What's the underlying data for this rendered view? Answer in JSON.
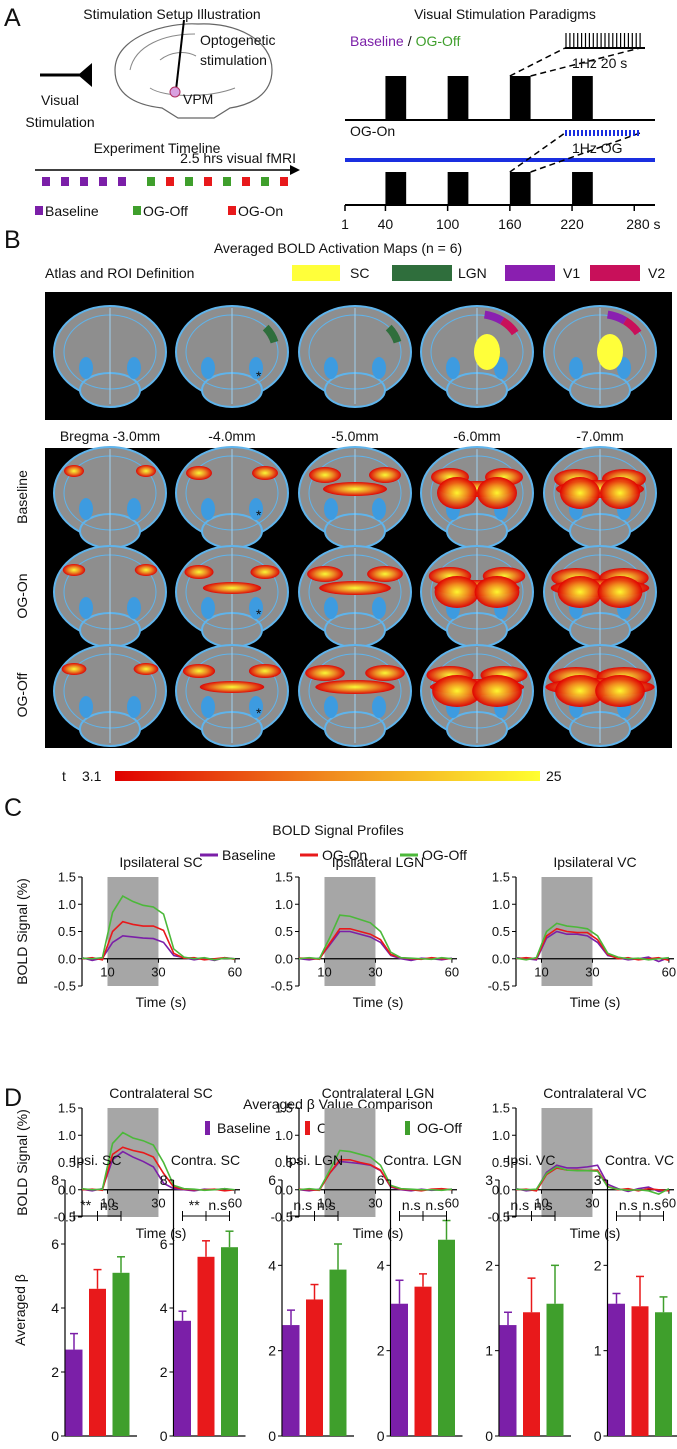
{
  "panel_a": {
    "label": "A",
    "setup": {
      "title": "Stimulation Setup Illustration",
      "optogenetic": [
        "Optogenetic",
        "stimulation"
      ],
      "target": "VPM",
      "visual": [
        "Visual",
        "Stimulation"
      ]
    },
    "timeline": {
      "title": "Experiment Timeline",
      "duration": "2.5 hrs visual fMRI",
      "legend": [
        {
          "name": "Baseline",
          "color": "#7b1fa8"
        },
        {
          "name": "OG-Off",
          "color": "#3f9f2c"
        },
        {
          "name": "OG-On",
          "color": "#e8191b"
        }
      ]
    },
    "paradigms": {
      "title": "Visual Stimulation Paradigms",
      "baseline": "Baseline",
      "separator": "/",
      "og_off": "OG-Off",
      "visual_inset": "1Hz 20 s",
      "og_on": "OG-On",
      "og_inset": "1Hz OG",
      "block_starts": [
        40,
        100,
        160,
        220
      ],
      "block_length": 20,
      "xlim": [
        1,
        300
      ],
      "xticks": [
        1,
        40,
        100,
        160,
        220,
        {
          "value": 280,
          "label": "280 s"
        }
      ]
    }
  },
  "panel_b": {
    "label": "B",
    "title": "Averaged BOLD Activation Maps (n = 6)",
    "atlas_title": "Atlas and ROI Definition",
    "rois": [
      {
        "name": "SC",
        "color": "#ffff3a"
      },
      {
        "name": "LGN",
        "color": "#2f6e3c"
      },
      {
        "name": "V1",
        "color": "#8a1fb0"
      },
      {
        "name": "V2",
        "color": "#c8105a"
      }
    ],
    "bregma": [
      "Bregma -3.0mm",
      "-4.0mm",
      "-5.0mm",
      "-6.0mm",
      "-7.0mm"
    ],
    "rows": [
      {
        "name": "Baseline",
        "color": "#7b1fa8"
      },
      {
        "name": "OG-On",
        "color": "#e8191b"
      },
      {
        "name": "OG-Off",
        "color": "#3f9f2c"
      }
    ],
    "marker": "*",
    "colorbar": {
      "label": "t",
      "min": 3.1,
      "max": 25,
      "colors": [
        "#e00000",
        "#f0891e",
        "#ffff30"
      ]
    }
  },
  "panel_c": {
    "label": "C",
    "title": "BOLD Signal Profiles",
    "legend": [
      {
        "name": "Baseline",
        "color": "#7b1fa8"
      },
      {
        "name": "OG-On",
        "color": "#e8191b"
      },
      {
        "name": "OG-Off",
        "color": "#4cb83a"
      }
    ]
  },
  "panel_d": {
    "label": "D",
    "title": "Averaged β Value Comparison",
    "legend": [
      {
        "name": "Baseline",
        "color": "#7b1fa8"
      },
      {
        "name": "OG-On",
        "color": "#e8191b"
      },
      {
        "name": "OG-Off",
        "color": "#3f9f2c"
      }
    ]
  },
  "chart_data": [
    {
      "type": "line",
      "title": "Ipsilateral SC",
      "ylabel": "BOLD Signal (%)",
      "xlabel": "Time (s)",
      "x": [
        0,
        4,
        8,
        12,
        16,
        20,
        24,
        28,
        32,
        36,
        40,
        44,
        48,
        52,
        56,
        60
      ],
      "series": [
        {
          "values": [
            0.02,
            -0.03,
            0.01,
            0.3,
            0.42,
            0.4,
            0.38,
            0.37,
            0.3,
            0.06,
            0.02,
            -0.02,
            0.01,
            -0.03,
            0.02,
            0
          ]
        },
        {
          "values": [
            0,
            0.02,
            -0.02,
            0.5,
            0.68,
            0.63,
            0.6,
            0.6,
            0.52,
            0.1,
            0.01,
            0.02,
            -0.02,
            0,
            0.02,
            -0.01
          ]
        },
        {
          "values": [
            0.01,
            0,
            0.02,
            0.85,
            1.15,
            1.05,
            0.98,
            0.95,
            0.82,
            0.18,
            0.03,
            0,
            0.02,
            -0.02,
            0.01,
            0
          ]
        }
      ],
      "xlim": [
        0,
        62
      ],
      "ylim": [
        -0.5,
        1.5
      ],
      "xticks": [
        10,
        30,
        60
      ],
      "yticks": [
        1.5,
        {
          "value": 1,
          "label": "1.0"
        },
        0.5,
        {
          "value": 0,
          "label": "0.0"
        },
        -0.5
      ],
      "shade": [
        10,
        30
      ]
    },
    {
      "type": "line",
      "title": "Ipsilateral LGN",
      "xlabel": "Time (s)",
      "x": [
        0,
        4,
        8,
        12,
        16,
        20,
        24,
        28,
        32,
        36,
        40,
        44,
        48,
        52,
        56,
        60
      ],
      "series": [
        {
          "values": [
            0,
            -0.02,
            0.01,
            0.25,
            0.5,
            0.5,
            0.45,
            0.4,
            0.3,
            0.06,
            0,
            -0.03,
            0.01,
            0,
            -0.02,
            0.01
          ]
        },
        {
          "values": [
            0.01,
            0.01,
            -0.01,
            0.28,
            0.55,
            0.55,
            0.5,
            0.45,
            0.35,
            0.08,
            0.02,
            0,
            -0.01,
            0.02,
            0,
            0
          ]
        },
        {
          "values": [
            0,
            0.02,
            0,
            0.38,
            0.8,
            0.78,
            0.72,
            0.66,
            0.5,
            0.12,
            0.02,
            0.01,
            0,
            -0.01,
            0.02,
            0
          ]
        }
      ],
      "xlim": [
        0,
        62
      ],
      "ylim": [
        -0.5,
        1.5
      ],
      "xticks": [
        10,
        30,
        60
      ],
      "yticks": [
        1.5,
        {
          "value": 1,
          "label": "1.0"
        },
        0.5,
        {
          "value": 0,
          "label": "0.0"
        },
        -0.5
      ],
      "shade": [
        10,
        30
      ]
    },
    {
      "type": "line",
      "title": "Ipsilateral VC",
      "xlabel": "Time (s)",
      "x": [
        0,
        4,
        8,
        12,
        16,
        20,
        24,
        28,
        32,
        36,
        40,
        44,
        48,
        52,
        56,
        60
      ],
      "series": [
        {
          "values": [
            0.02,
            0,
            -0.02,
            0.38,
            0.5,
            0.45,
            0.45,
            0.42,
            0.3,
            0.06,
            0.02,
            -0.02,
            0,
            0.03,
            -0.05,
            0.02
          ]
        },
        {
          "values": [
            0,
            0.02,
            0,
            0.42,
            0.55,
            0.5,
            0.48,
            0.48,
            0.35,
            0.08,
            0,
            0.02,
            -0.02,
            0,
            0.02,
            -0.03
          ]
        },
        {
          "values": [
            0.01,
            -0.02,
            0.02,
            0.5,
            0.65,
            0.6,
            0.58,
            0.55,
            0.42,
            0.1,
            0.03,
            0,
            0.01,
            -0.02,
            0,
            0.02
          ]
        }
      ],
      "xlim": [
        0,
        62
      ],
      "ylim": [
        -0.5,
        1.5
      ],
      "xticks": [
        10,
        30,
        60
      ],
      "yticks": [
        1.5,
        {
          "value": 1,
          "label": "1.0"
        },
        0.5,
        {
          "value": 0,
          "label": "0.0"
        },
        -0.5
      ],
      "shade": [
        10,
        30
      ]
    },
    {
      "type": "line",
      "title": "Contralateral SC",
      "ylabel": "BOLD Signal (%)",
      "xlabel": "Time (s)",
      "x": [
        0,
        4,
        8,
        12,
        16,
        20,
        24,
        28,
        32,
        36,
        40,
        44,
        48,
        52,
        56,
        60
      ],
      "series": [
        {
          "values": [
            0.01,
            -0.02,
            0.02,
            0.55,
            0.7,
            0.6,
            0.52,
            0.42,
            0.12,
            0.02,
            0,
            -0.02,
            0.01,
            0,
            0.02,
            -0.01
          ]
        },
        {
          "values": [
            0,
            0.01,
            -0.01,
            0.65,
            0.78,
            0.72,
            0.68,
            0.6,
            0.3,
            0.05,
            0.01,
            0,
            0,
            0.01,
            -0.02,
            0
          ]
        },
        {
          "values": [
            0.02,
            0,
            0.01,
            0.85,
            1.05,
            0.95,
            0.9,
            0.82,
            0.5,
            0.08,
            0.02,
            0.01,
            -0.01,
            0,
            0.02,
            0
          ]
        }
      ],
      "xlim": [
        0,
        62
      ],
      "ylim": [
        -0.5,
        1.5
      ],
      "xticks": [
        10,
        30,
        60
      ],
      "yticks": [
        1.5,
        {
          "value": 1,
          "label": "1.0"
        },
        0.5,
        {
          "value": 0,
          "label": "0.0"
        },
        -0.5
      ],
      "shade": [
        10,
        30
      ]
    },
    {
      "type": "line",
      "title": "Contralateral LGN",
      "xlabel": "Time (s)",
      "x": [
        0,
        4,
        8,
        12,
        16,
        20,
        24,
        28,
        32,
        36,
        40,
        44,
        48,
        52,
        56,
        60
      ],
      "series": [
        {
          "values": [
            0,
            -0.02,
            0.01,
            0.3,
            0.52,
            0.5,
            0.48,
            0.45,
            0.35,
            0.05,
            0,
            -0.02,
            0.01,
            -0.01,
            0,
            0.01
          ]
        },
        {
          "values": [
            0.01,
            0,
            -0.01,
            0.3,
            0.55,
            0.55,
            0.5,
            0.46,
            0.36,
            0.06,
            0.01,
            0,
            -0.02,
            0.01,
            0.02,
            0
          ]
        },
        {
          "values": [
            0,
            0.02,
            0,
            0.35,
            0.72,
            0.7,
            0.65,
            0.6,
            0.45,
            0.08,
            0.02,
            0.01,
            0,
            0,
            -0.01,
            0.01
          ]
        }
      ],
      "xlim": [
        0,
        62
      ],
      "ylim": [
        -0.5,
        1.5
      ],
      "xticks": [
        10,
        30,
        60
      ],
      "yticks": [
        1.5,
        {
          "value": 1,
          "label": "1.0"
        },
        0.5,
        {
          "value": 0,
          "label": "0.0"
        },
        -0.5
      ],
      "shade": [
        10,
        30
      ]
    },
    {
      "type": "line",
      "title": "Contralateral VC",
      "xlabel": "Time (s)",
      "x": [
        0,
        4,
        8,
        12,
        16,
        20,
        24,
        28,
        32,
        36,
        40,
        44,
        48,
        52,
        56,
        60
      ],
      "series": [
        {
          "values": [
            0.02,
            -0.02,
            0,
            0.32,
            0.45,
            0.4,
            0.4,
            0.42,
            0.45,
            0.1,
            0.02,
            -0.03,
            0.02,
            0.05,
            -0.03,
            0
          ]
        },
        {
          "values": [
            0,
            0.01,
            -0.02,
            0.28,
            0.4,
            0.36,
            0.36,
            0.35,
            0.36,
            0.06,
            0,
            0.02,
            -0.02,
            0.02,
            0,
            -0.02
          ]
        },
        {
          "values": [
            0.01,
            0,
            0.01,
            0.3,
            0.42,
            0.36,
            0.35,
            0.35,
            0.34,
            0.05,
            0.01,
            -0.01,
            0,
            -0.02,
            -0.08,
            0.02
          ]
        }
      ],
      "xlim": [
        0,
        62
      ],
      "ylim": [
        -0.5,
        1.5
      ],
      "xticks": [
        10,
        30,
        60
      ],
      "yticks": [
        1.5,
        {
          "value": 1,
          "label": "1.0"
        },
        0.5,
        {
          "value": 0,
          "label": "0.0"
        },
        -0.5
      ],
      "shade": [
        10,
        30
      ]
    },
    {
      "type": "bar",
      "title": "Ipsi. SC",
      "ylabel": "Averaged β",
      "values": [
        2.7,
        4.6,
        5.1
      ],
      "errors": [
        0.5,
        0.6,
        0.5
      ],
      "ylim": [
        0,
        8
      ],
      "yticks": [
        0,
        2,
        4,
        6,
        8
      ],
      "annotations": [
        "**",
        "n.s"
      ]
    },
    {
      "type": "bar",
      "title": "Contra. SC",
      "values": [
        3.6,
        5.6,
        5.9
      ],
      "errors": [
        0.3,
        0.5,
        0.5
      ],
      "ylim": [
        0,
        8
      ],
      "yticks": [
        0,
        2,
        4,
        6,
        8
      ],
      "annotations": [
        "**",
        "n.s"
      ]
    },
    {
      "type": "bar",
      "title": "Ipsi. LGN",
      "values": [
        2.6,
        3.2,
        3.9
      ],
      "errors": [
        0.35,
        0.35,
        0.6
      ],
      "ylim": [
        0,
        6
      ],
      "yticks": [
        0,
        2,
        4,
        6
      ],
      "annotations": [
        "n.s",
        "n.s"
      ]
    },
    {
      "type": "bar",
      "title": "Contra. LGN",
      "values": [
        3.1,
        3.5,
        4.6
      ],
      "errors": [
        0.55,
        0.3,
        0.45
      ],
      "ylim": [
        0,
        6
      ],
      "yticks": [
        0,
        2,
        4,
        6
      ],
      "annotations": [
        "n.s",
        "n.s"
      ]
    },
    {
      "type": "bar",
      "title": "Ipsi. VC",
      "values": [
        1.3,
        1.45,
        1.55
      ],
      "errors": [
        0.15,
        0.4,
        0.45
      ],
      "ylim": [
        0,
        3
      ],
      "yticks": [
        0,
        1,
        2,
        3
      ],
      "annotations": [
        "n.s",
        "n.s"
      ]
    },
    {
      "type": "bar",
      "title": "Contra. VC",
      "values": [
        1.55,
        1.52,
        1.45
      ],
      "errors": [
        0.12,
        0.35,
        0.18
      ],
      "ylim": [
        0,
        3
      ],
      "yticks": [
        0,
        1,
        2,
        3
      ],
      "annotations": [
        "n.s",
        "n.s"
      ]
    }
  ]
}
